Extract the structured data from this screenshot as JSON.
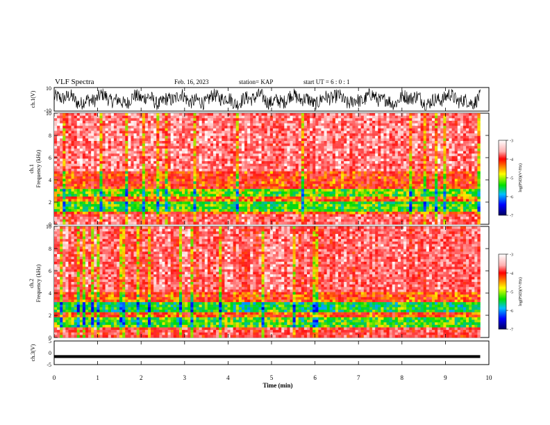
{
  "header": {
    "title": "VLF Spectra",
    "date": "Feb. 16, 2023",
    "station": "station= KAP",
    "start": "start  UT =   6 : 0  : 1"
  },
  "chart_data": [
    {
      "type": "line",
      "panel": "ch1-waveform",
      "ylabel": "ch.1(V)",
      "ylim": [
        -10,
        10
      ],
      "yticks": [
        10,
        -10
      ],
      "xlim": [
        0,
        10
      ],
      "note_values": "dense noisy waveform spanning 0 to 9.8 min, amplitude roughly between -9 and 9 V"
    },
    {
      "type": "heatmap",
      "panel": "ch1-spectrogram",
      "ylabel": "ch.1\nFrequency (kHz)",
      "ylabel_line1": "ch.1",
      "ylabel_line2": "Frequency (kHz)",
      "ylim": [
        0,
        10
      ],
      "yticks": [
        0,
        2,
        4,
        6,
        8,
        10
      ],
      "xlim": [
        0,
        10
      ],
      "x_end": 9.8,
      "colorbar": {
        "label": "log(PSD)(V²/Hz)",
        "range": [
          -7,
          -3
        ],
        "ticks": [
          -3,
          -4,
          -5,
          -6,
          -7
        ]
      },
      "bands": [
        {
          "from": 0,
          "to": 0.8,
          "level": -3.6
        },
        {
          "from": 0.8,
          "to": 1.2,
          "level": -4.1
        },
        {
          "from": 1.2,
          "to": 2.0,
          "level": -5.0
        },
        {
          "from": 2.0,
          "to": 2.4,
          "level": -4.2
        },
        {
          "from": 2.4,
          "to": 3.2,
          "level": -4.9
        },
        {
          "from": 3.2,
          "to": 4.8,
          "level": -4.0
        },
        {
          "from": 4.8,
          "to": 10,
          "level": -3.5
        }
      ]
    },
    {
      "type": "heatmap",
      "panel": "ch2-spectrogram",
      "ylabel": "ch.2\nFrequency (kHz)",
      "ylabel_line1": "ch.2",
      "ylabel_line2": "Frequency (kHz)",
      "ylim": [
        0,
        10
      ],
      "yticks": [
        0,
        2,
        4,
        6,
        8,
        10
      ],
      "xlim": [
        0,
        10
      ],
      "x_end": 9.8,
      "colorbar": {
        "label": "log(PSD)(V²/Hz)",
        "range": [
          -7,
          -3
        ],
        "ticks": [
          -3,
          -4,
          -5,
          -6,
          -7
        ]
      },
      "bands": [
        {
          "from": 0,
          "to": 0.8,
          "level": -3.7
        },
        {
          "from": 0.8,
          "to": 1.9,
          "level": -5.0
        },
        {
          "from": 1.9,
          "to": 2.3,
          "level": -4.1
        },
        {
          "from": 2.3,
          "to": 3.2,
          "level": -5.2
        },
        {
          "from": 3.2,
          "to": 4.0,
          "level": -4.1
        },
        {
          "from": 4.0,
          "to": 10,
          "level": -3.6
        }
      ]
    },
    {
      "type": "line",
      "panel": "ch3-waveform",
      "ylabel": "ch.3(V)",
      "ylim": [
        -5,
        5
      ],
      "yticks": [
        5,
        0,
        -5
      ],
      "xlim": [
        0,
        10
      ],
      "xlabel": "Time (min)",
      "xticks": [
        0,
        1,
        2,
        3,
        4,
        5,
        6,
        7,
        8,
        9,
        10
      ],
      "band": {
        "from": -2.2,
        "to": -1.0,
        "x_end": 9.8
      }
    }
  ],
  "colors": {
    "ink": "#000000",
    "scale": [
      "#ffffff",
      "#ff2020",
      "#ffff00",
      "#00dd00",
      "#00b0ff",
      "#0000ff",
      "#000080"
    ]
  }
}
